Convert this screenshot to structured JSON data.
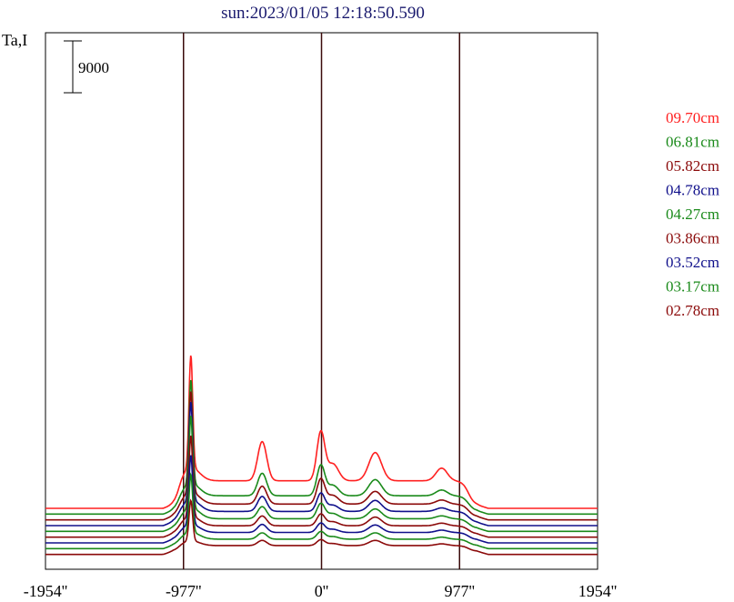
{
  "chart_data": {
    "type": "line",
    "title": "sun:2023/01/05 12:18:50.590",
    "ylabel": "Ta,I",
    "scale_bar_label": "9000",
    "scale_bar_value": 9000,
    "xlim": [
      -1954,
      1954
    ],
    "x_ticks": [
      -1954,
      -977,
      0,
      977,
      1954
    ],
    "x_tick_labels": [
      "-1954''",
      "-977''",
      "0''",
      "977''",
      "1954''"
    ],
    "vertical_lines": [
      -977,
      0,
      977
    ],
    "grid": false,
    "legend_position": "right",
    "series": [
      {
        "name": "09.70cm",
        "color": "#ff2020",
        "baseline": 9000,
        "peak": 28500,
        "f1": 6800,
        "f2": 8400,
        "f3": 4900,
        "f4": 2200
      },
      {
        "name": "06.81cm",
        "color": "#1a8a1a",
        "baseline": 8000,
        "peak": 26000,
        "f1": 3900,
        "f2": 5200,
        "f3": 2800,
        "f4": 1000
      },
      {
        "name": "05.82cm",
        "color": "#8b0a0a",
        "baseline": 7000,
        "peak": 24500,
        "f1": 3100,
        "f2": 4300,
        "f3": 2200,
        "f4": 700
      },
      {
        "name": "04.78cm",
        "color": "#10108b",
        "baseline": 6000,
        "peak": 23000,
        "f1": 2600,
        "f2": 3100,
        "f3": 1900,
        "f4": 600
      },
      {
        "name": "04.27cm",
        "color": "#1a8a1a",
        "baseline": 5000,
        "peak": 21000,
        "f1": 2100,
        "f2": 2600,
        "f3": 1700,
        "f4": 500
      },
      {
        "name": "03.86cm",
        "color": "#8b0a0a",
        "baseline": 4000,
        "peak": 18000,
        "f1": 1700,
        "f2": 2000,
        "f3": 1500,
        "f4": 450
      },
      {
        "name": "03.52cm",
        "color": "#10108b",
        "baseline": 3000,
        "peak": 15000,
        "f1": 1400,
        "f2": 1600,
        "f3": 1300,
        "f4": 400
      },
      {
        "name": "03.17cm",
        "color": "#1a8a1a",
        "baseline": 2000,
        "peak": 12000,
        "f1": 1100,
        "f2": 1300,
        "f3": 1100,
        "f4": 350
      },
      {
        "name": "02.78cm",
        "color": "#8b0a0a",
        "baseline": 1000,
        "peak": 8000,
        "f1": 900,
        "f2": 1000,
        "f3": 900,
        "f4": 300
      }
    ]
  }
}
